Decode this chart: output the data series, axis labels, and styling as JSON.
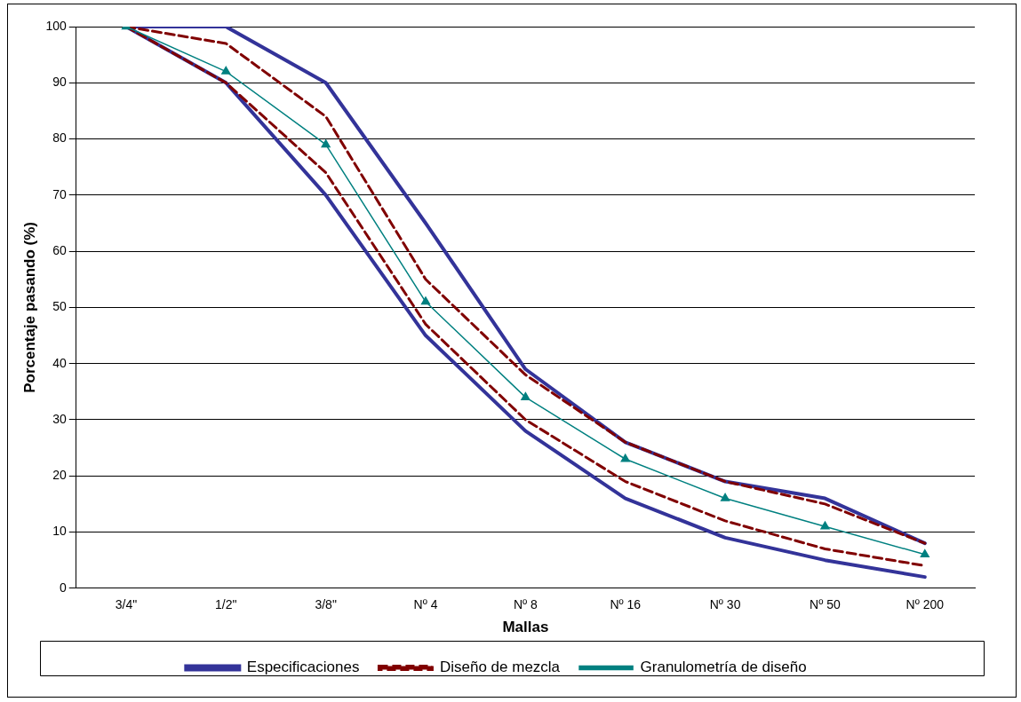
{
  "chart_data": {
    "type": "line",
    "xlabel": "Mallas",
    "ylabel": "Porcentaje pasando (%)",
    "categories": [
      "3/4\"",
      "1/2\"",
      "3/8\"",
      "Nº 4",
      "Nº 8",
      "Nº 16",
      "Nº 30",
      "Nº 50",
      "Nº 200"
    ],
    "series": [
      {
        "name": "Especificaciones",
        "color": "#333399",
        "line_style": "solid",
        "marker": "none",
        "values": [
          100,
          100,
          90,
          65,
          39,
          26,
          19,
          16,
          8
        ]
      },
      {
        "color": "#333399",
        "line_style": "solid",
        "marker": "none",
        "values": [
          100,
          90,
          70,
          45,
          28,
          16,
          9,
          5,
          2
        ]
      },
      {
        "name": "Diseño de mezcla",
        "color": "#800000",
        "line_style": "dashed",
        "marker": "none",
        "values": [
          100,
          97,
          84,
          55,
          38,
          26,
          19,
          15,
          8
        ]
      },
      {
        "color": "#800000",
        "line_style": "dashed",
        "marker": "none",
        "values": [
          100,
          90,
          74,
          47,
          30,
          19,
          12,
          7,
          4
        ]
      },
      {
        "name": "Granulometría de diseño",
        "color": "#008080",
        "line_style": "solid",
        "marker": "triangle",
        "values": [
          100,
          92,
          79,
          51,
          34,
          23,
          16,
          11,
          6
        ]
      }
    ],
    "ylim": [
      0,
      100
    ],
    "yticks": [
      0,
      10,
      20,
      30,
      40,
      50,
      60,
      70,
      80,
      90,
      100
    ],
    "grid": "y",
    "legend": "bottom"
  }
}
